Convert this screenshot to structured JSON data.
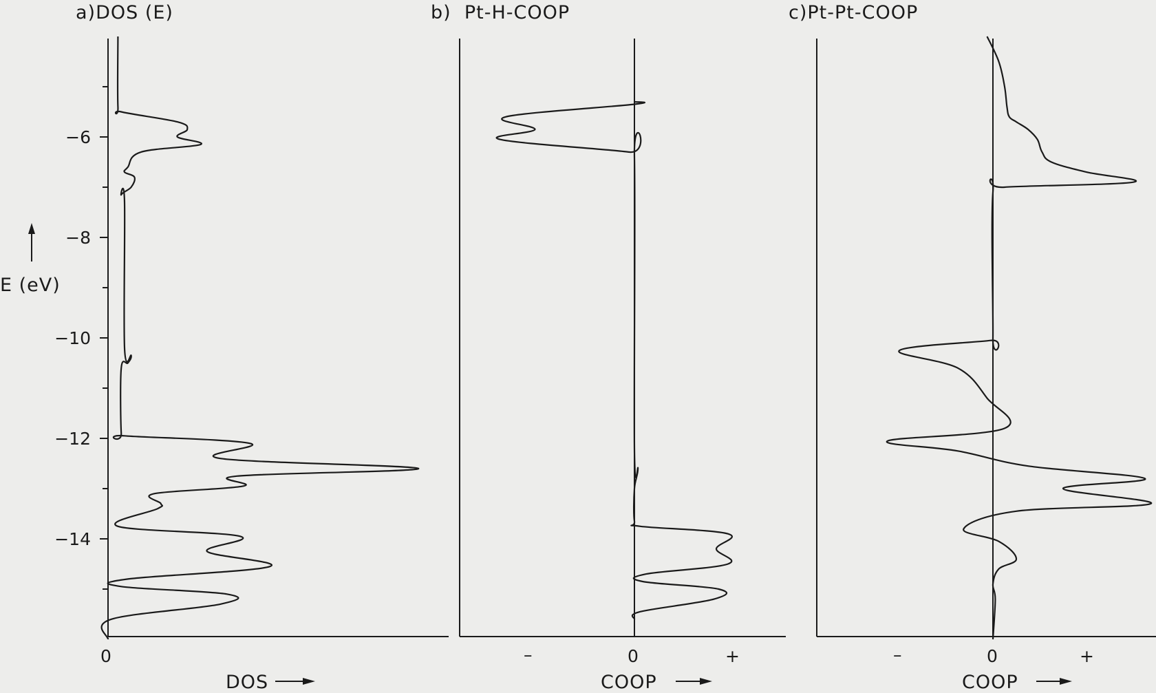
{
  "colors": {
    "background": "#ededeb",
    "ink": "#1a1a1a"
  },
  "yaxis": {
    "label": "E (eV)",
    "ticks": [
      "-6",
      "-8",
      "-10",
      "-12",
      "-14"
    ],
    "ylim": [
      -16,
      -4
    ]
  },
  "panels": [
    {
      "id": "a",
      "title": "a)DOS (E)",
      "xlabel": "DOS",
      "ticks": [
        "0"
      ]
    },
    {
      "id": "b",
      "title": "b)  Pt-H-COOP",
      "xlabel": "COOP",
      "ticks": [
        "–",
        "0",
        "+"
      ]
    },
    {
      "id": "c",
      "title": "c)Pt-Pt-COOP",
      "xlabel": "COOP",
      "ticks": [
        "–",
        "0",
        "+"
      ]
    }
  ],
  "chart_data": [
    {
      "type": "line",
      "title": "a)DOS (E)",
      "xlabel": "DOS",
      "ylabel": "E (eV)",
      "ylim": [
        -16,
        -4
      ],
      "xlim": [
        0,
        10
      ],
      "grid": false,
      "series": [
        {
          "points": [
            [
              0.3,
              -4.0
            ],
            [
              0.3,
              -5.4
            ],
            [
              0.4,
              -5.5
            ],
            [
              2.1,
              -5.7
            ],
            [
              2.4,
              -5.85
            ],
            [
              2.1,
              -6.0
            ],
            [
              2.8,
              -6.15
            ],
            [
              1.0,
              -6.3
            ],
            [
              0.6,
              -6.6
            ],
            [
              0.5,
              -6.7
            ],
            [
              0.8,
              -6.8
            ],
            [
              0.7,
              -7.0
            ],
            [
              0.4,
              -7.15
            ],
            [
              0.5,
              -7.3
            ],
            [
              0.5,
              -10.2
            ],
            [
              0.7,
              -10.35
            ],
            [
              0.6,
              -10.5
            ],
            [
              0.4,
              -10.6
            ],
            [
              0.4,
              -11.9
            ],
            [
              0.5,
              -11.95
            ],
            [
              4.3,
              -12.1
            ],
            [
              3.4,
              -12.4
            ],
            [
              9.4,
              -12.6
            ],
            [
              3.9,
              -12.75
            ],
            [
              4.1,
              -12.95
            ],
            [
              1.4,
              -13.1
            ],
            [
              1.6,
              -13.3
            ],
            [
              1.5,
              -13.4
            ],
            [
              0.3,
              -13.75
            ],
            [
              4.0,
              -13.95
            ],
            [
              3.0,
              -14.25
            ],
            [
              4.9,
              -14.55
            ],
            [
              0.6,
              -14.8
            ],
            [
              0.4,
              -14.95
            ],
            [
              3.6,
              -15.1
            ],
            [
              3.4,
              -15.3
            ],
            [
              0.1,
              -15.6
            ],
            [
              0.0,
              -16.0
            ]
          ]
        }
      ]
    },
    {
      "type": "line",
      "title": "b)  Pt-H-COOP",
      "xlabel": "COOP",
      "ylabel": "E (eV)",
      "ylim": [
        -16,
        -4
      ],
      "xlim": [
        -1.5,
        1.5
      ],
      "grid": false,
      "series": [
        {
          "points": [
            [
              0.0,
              -5.3
            ],
            [
              0.0,
              -5.35
            ],
            [
              -1.1,
              -5.6
            ],
            [
              -0.85,
              -5.85
            ],
            [
              -1.15,
              -6.05
            ],
            [
              -0.05,
              -6.3
            ],
            [
              0.0,
              -6.4
            ],
            [
              0.0,
              -12.2
            ],
            [
              0.03,
              -12.6
            ],
            [
              0.0,
              -13.0
            ],
            [
              0.0,
              -13.65
            ],
            [
              0.05,
              -13.75
            ],
            [
              0.8,
              -13.9
            ],
            [
              0.7,
              -14.2
            ],
            [
              0.8,
              -14.5
            ],
            [
              0.1,
              -14.7
            ],
            [
              0.07,
              -14.85
            ],
            [
              0.72,
              -15.0
            ],
            [
              0.68,
              -15.2
            ],
            [
              0.05,
              -15.45
            ],
            [
              0.0,
              -15.6
            ]
          ]
        }
      ]
    },
    {
      "type": "line",
      "title": "c)Pt-Pt-COOP",
      "xlabel": "COOP",
      "ylabel": "E (eV)",
      "ylim": [
        -16,
        -4
      ],
      "xlim": [
        -1.5,
        1.5
      ],
      "grid": false,
      "series": [
        {
          "points": [
            [
              -0.05,
              -4.0
            ],
            [
              0.05,
              -4.5
            ],
            [
              0.1,
              -5.0
            ],
            [
              0.12,
              -5.4
            ],
            [
              0.14,
              -5.6
            ],
            [
              0.2,
              -5.7
            ],
            [
              0.3,
              -5.85
            ],
            [
              0.38,
              -6.05
            ],
            [
              0.42,
              -6.3
            ],
            [
              0.5,
              -6.5
            ],
            [
              0.8,
              -6.7
            ],
            [
              1.2,
              -6.9
            ],
            [
              0.1,
              -7.0
            ],
            [
              0.0,
              -7.1
            ],
            [
              0.0,
              -10.0
            ],
            [
              -0.02,
              -10.05
            ],
            [
              -0.8,
              -10.25
            ],
            [
              -0.3,
              -10.6
            ],
            [
              -0.05,
              -11.2
            ],
            [
              0.1,
              -11.8
            ],
            [
              -0.9,
              -12.05
            ],
            [
              -0.3,
              -12.25
            ],
            [
              0.3,
              -12.55
            ],
            [
              1.3,
              -12.8
            ],
            [
              0.6,
              -13.0
            ],
            [
              1.35,
              -13.3
            ],
            [
              0.2,
              -13.45
            ],
            [
              -0.25,
              -13.8
            ],
            [
              0.05,
              -14.05
            ],
            [
              0.2,
              -14.4
            ],
            [
              0.05,
              -14.6
            ],
            [
              0.0,
              -14.9
            ],
            [
              0.02,
              -15.2
            ],
            [
              0.0,
              -16.0
            ]
          ]
        }
      ]
    }
  ]
}
